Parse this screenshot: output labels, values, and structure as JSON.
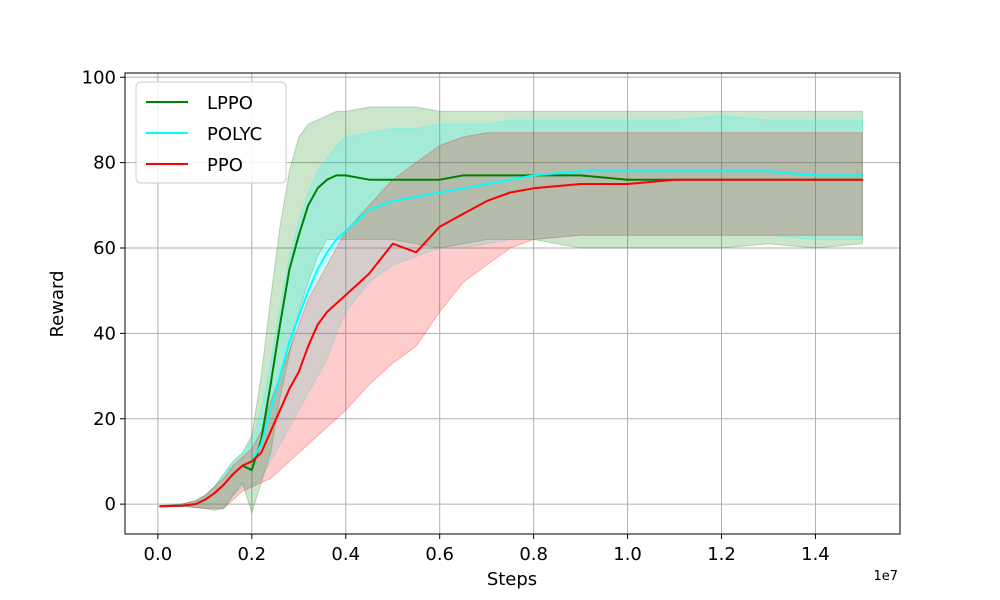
{
  "chart_data": {
    "type": "line",
    "xlabel": "Steps",
    "ylabel": "Reward",
    "x_offset_label": "1e7",
    "xlim": [
      -0.07,
      1.58
    ],
    "ylim": [
      -7,
      101
    ],
    "xticks": [
      0.0,
      0.2,
      0.4,
      0.6,
      0.8,
      1.0,
      1.2,
      1.4
    ],
    "xtick_labels": [
      "0.0",
      "0.2",
      "0.4",
      "0.6",
      "0.8",
      "1.0",
      "1.2",
      "1.4"
    ],
    "yticks": [
      0,
      20,
      40,
      60,
      80,
      100
    ],
    "ytick_labels": [
      "0",
      "20",
      "40",
      "60",
      "80",
      "100"
    ],
    "grid": true,
    "legend_position": "top-left",
    "series": [
      {
        "name": "LPPO",
        "color": "#008000",
        "x": [
          0.005,
          0.05,
          0.08,
          0.1,
          0.12,
          0.14,
          0.16,
          0.18,
          0.2,
          0.22,
          0.24,
          0.26,
          0.28,
          0.3,
          0.32,
          0.34,
          0.36,
          0.38,
          0.4,
          0.45,
          0.5,
          0.55,
          0.6,
          0.65,
          0.7,
          0.75,
          0.8,
          0.9,
          1.0,
          1.1,
          1.2,
          1.3,
          1.4,
          1.5
        ],
        "values": [
          -0.5,
          -0.4,
          0,
          1,
          2.5,
          4.5,
          7,
          9,
          8,
          15,
          28,
          42,
          55,
          63,
          70,
          74,
          76,
          77,
          77,
          76,
          76,
          76,
          76,
          77,
          77,
          77,
          77,
          77,
          76,
          76,
          76,
          76,
          76,
          76
        ],
        "lower": [
          -0.5,
          -0.5,
          -0.8,
          -1,
          -1.5,
          -1,
          2,
          5,
          -2,
          5,
          12,
          25,
          35,
          45,
          52,
          58,
          62,
          62,
          62,
          62,
          62,
          61,
          60,
          61,
          62,
          62,
          62,
          60,
          60,
          60,
          60,
          61,
          60,
          61
        ],
        "upper": [
          -0.4,
          0,
          0.8,
          2,
          4,
          7,
          10,
          12,
          16,
          30,
          48,
          65,
          78,
          86,
          89,
          90,
          91,
          92,
          92,
          93,
          93,
          93,
          92,
          92,
          92,
          92,
          92,
          92,
          92,
          92,
          92,
          92,
          92,
          92
        ]
      },
      {
        "name": "POLYC",
        "color": "#00ffff",
        "x": [
          0.005,
          0.05,
          0.08,
          0.1,
          0.12,
          0.14,
          0.16,
          0.18,
          0.2,
          0.22,
          0.24,
          0.26,
          0.28,
          0.3,
          0.32,
          0.34,
          0.36,
          0.38,
          0.4,
          0.45,
          0.5,
          0.55,
          0.6,
          0.65,
          0.7,
          0.75,
          0.8,
          0.9,
          1.0,
          1.1,
          1.2,
          1.3,
          1.4,
          1.5
        ],
        "values": [
          -0.5,
          -0.4,
          0,
          1,
          2.5,
          4.5,
          7,
          9,
          10,
          14,
          22,
          30,
          38,
          44,
          50,
          55,
          59,
          62,
          64,
          69,
          71,
          72,
          73,
          74,
          75,
          76,
          77,
          78,
          78,
          78,
          78,
          78,
          77,
          77
        ],
        "lower": [
          -0.5,
          -0.5,
          -0.8,
          -1,
          -1,
          -1,
          2,
          4,
          4,
          6,
          10,
          14,
          18,
          22,
          26,
          30,
          34,
          40,
          45,
          52,
          56,
          58,
          60,
          60,
          61,
          62,
          62,
          63,
          63,
          63,
          63,
          63,
          62,
          62
        ],
        "upper": [
          -0.4,
          0,
          0.8,
          2,
          4,
          7,
          10,
          12,
          15,
          22,
          33,
          46,
          58,
          66,
          73,
          78,
          81,
          84,
          86,
          87,
          88,
          88,
          89,
          89,
          89,
          90,
          90,
          90,
          90,
          90,
          91,
          90,
          90,
          90
        ]
      },
      {
        "name": "PPO",
        "color": "#ff0000",
        "x": [
          0.005,
          0.05,
          0.08,
          0.1,
          0.12,
          0.14,
          0.16,
          0.18,
          0.2,
          0.22,
          0.24,
          0.26,
          0.28,
          0.3,
          0.32,
          0.34,
          0.36,
          0.38,
          0.4,
          0.45,
          0.5,
          0.55,
          0.6,
          0.65,
          0.7,
          0.75,
          0.8,
          0.9,
          1.0,
          1.1,
          1.2,
          1.3,
          1.4,
          1.5
        ],
        "values": [
          -0.5,
          -0.4,
          0,
          1,
          2.5,
          4.5,
          7,
          9,
          10,
          12,
          17,
          22,
          27,
          31,
          37,
          42,
          45,
          47,
          49,
          54,
          61,
          59,
          65,
          68,
          71,
          73,
          74,
          75,
          75,
          76,
          76,
          76,
          76,
          76
        ],
        "lower": [
          -0.5,
          -0.5,
          -0.8,
          -1,
          -1,
          -1,
          1,
          3,
          4,
          5,
          6,
          8,
          10,
          12,
          14,
          16,
          18,
          20,
          22,
          28,
          33,
          37,
          45,
          52,
          56,
          60,
          62,
          63,
          63,
          63,
          63,
          63,
          63,
          63
        ],
        "upper": [
          -0.4,
          0,
          0.8,
          2,
          4,
          6,
          9,
          11,
          13,
          17,
          24,
          30,
          36,
          42,
          48,
          52,
          56,
          60,
          64,
          70,
          76,
          80,
          84,
          86,
          87,
          87,
          87,
          87,
          87,
          87,
          87,
          87,
          87,
          87
        ]
      }
    ]
  }
}
